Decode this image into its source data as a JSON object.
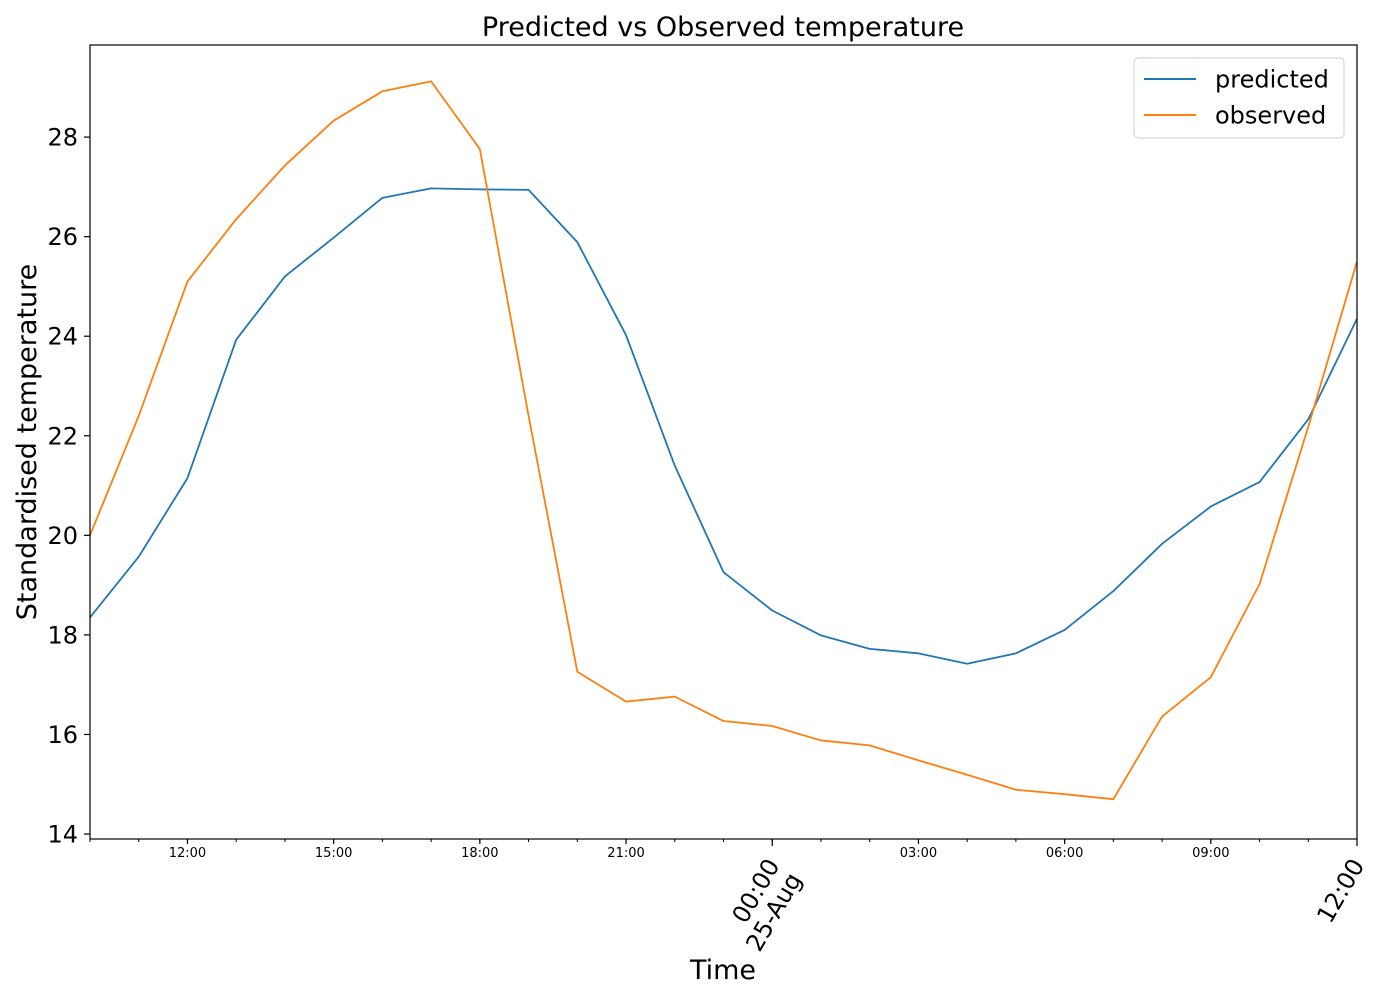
{
  "chart_data": {
    "type": "line",
    "title": "Predicted vs Observed temperature",
    "xlabel": "Time",
    "ylabel": "Standardised temperature",
    "x": [
      "2024-08-24 10:00",
      "2024-08-24 11:00",
      "2024-08-24 12:00",
      "2024-08-24 13:00",
      "2024-08-24 14:00",
      "2024-08-24 15:00",
      "2024-08-24 16:00",
      "2024-08-24 17:00",
      "2024-08-24 18:00",
      "2024-08-24 19:00",
      "2024-08-24 20:00",
      "2024-08-24 21:00",
      "2024-08-24 22:00",
      "2024-08-24 23:00",
      "2024-08-25 00:00",
      "2024-08-25 01:00",
      "2024-08-25 02:00",
      "2024-08-25 03:00",
      "2024-08-25 04:00",
      "2024-08-25 05:00",
      "2024-08-25 06:00",
      "2024-08-25 07:00",
      "2024-08-25 08:00",
      "2024-08-25 09:00",
      "2024-08-25 10:00",
      "2024-08-25 11:00",
      "2024-08-25 12:00"
    ],
    "series": [
      {
        "name": "predicted",
        "color": "#1f77b4",
        "values": [
          18.35,
          19.57,
          21.15,
          23.93,
          25.2,
          25.98,
          26.78,
          26.97,
          26.95,
          26.94,
          25.89,
          24.02,
          21.4,
          19.26,
          18.49,
          17.99,
          17.72,
          17.63,
          17.42,
          17.63,
          18.1,
          18.88,
          19.83,
          20.58,
          21.07,
          22.33,
          24.35
        ]
      },
      {
        "name": "observed",
        "color": "#ff7f0e",
        "values": [
          20.0,
          22.4,
          25.1,
          26.35,
          27.43,
          28.33,
          28.92,
          29.12,
          27.76,
          22.4,
          17.26,
          16.66,
          16.76,
          16.27,
          16.17,
          15.88,
          15.78,
          15.48,
          15.19,
          14.89,
          14.8,
          14.7,
          16.36,
          17.15,
          19.02,
          22.18,
          25.5
        ]
      }
    ],
    "xlim": [
      "2024-08-24 10:00",
      "2024-08-25 12:00"
    ],
    "ylim": [
      13.9,
      29.85
    ],
    "yticks": [
      14,
      16,
      18,
      20,
      22,
      24,
      26,
      28
    ],
    "xticks": [
      {
        "x": "2024-08-24 12:00",
        "label": "12:00"
      },
      {
        "x": "2024-08-24 15:00",
        "label": "15:00"
      },
      {
        "x": "2024-08-24 18:00",
        "label": "18:00"
      },
      {
        "x": "2024-08-24 21:00",
        "label": "21:00"
      },
      {
        "x": "2024-08-25 00:00",
        "label": "00:00",
        "label2": "25-Aug",
        "major": true
      },
      {
        "x": "2024-08-25 03:00",
        "label": "03:00"
      },
      {
        "x": "2024-08-25 06:00",
        "label": "06:00"
      },
      {
        "x": "2024-08-25 09:00",
        "label": "09:00"
      },
      {
        "x": "2024-08-25 12:00",
        "label": "12:00",
        "major": true
      }
    ],
    "grid": false,
    "legend": "top-right"
  }
}
